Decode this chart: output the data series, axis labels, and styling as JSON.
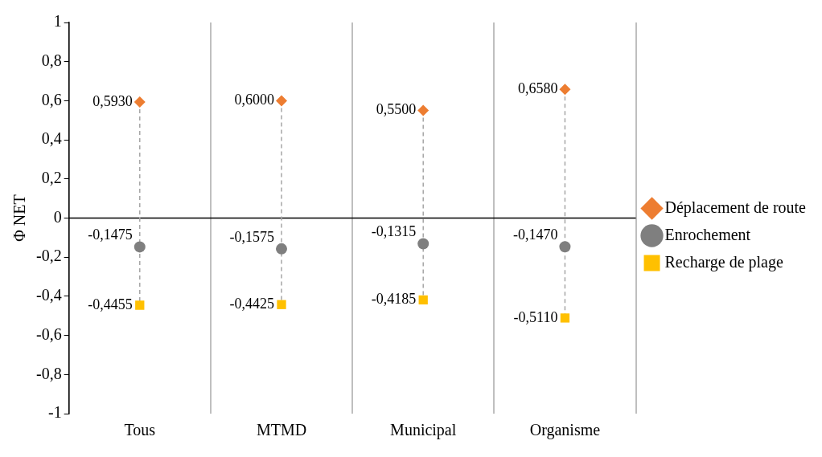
{
  "chart_data": {
    "type": "scatter",
    "ylabel": "Φ NET",
    "categories": [
      "Tous",
      "MTMD",
      "Municipal",
      "Organisme"
    ],
    "series": [
      {
        "name": "Déplacement de route",
        "color": "#ed7d31",
        "marker": "diamond",
        "values": [
          0.593,
          0.6,
          0.55,
          0.658
        ],
        "value_labels": [
          "0,5930",
          "0,6000",
          "0,5500",
          "0,6580"
        ]
      },
      {
        "name": "Enrochement",
        "color": "#7f7f7f",
        "marker": "circle",
        "values": [
          -0.1475,
          -0.1575,
          -0.1315,
          -0.147
        ],
        "value_labels": [
          "-0,1475",
          "-0,1575",
          "-0,1315",
          "-0,1470"
        ]
      },
      {
        "name": "Recharge de plage",
        "color": "#ffc000",
        "marker": "square",
        "values": [
          -0.4455,
          -0.4425,
          -0.4185,
          -0.511
        ],
        "value_labels": [
          "-0,4455",
          "-0,4425",
          "-0,4185",
          "-0,5110"
        ]
      }
    ],
    "ylim": [
      -1,
      1
    ],
    "yticks": [
      {
        "value": -1,
        "label": "-1"
      },
      {
        "value": -0.8,
        "label": "-0,8"
      },
      {
        "value": -0.6,
        "label": "-0,6"
      },
      {
        "value": -0.4,
        "label": "-0,4"
      },
      {
        "value": -0.2,
        "label": "-0,2"
      },
      {
        "value": 0,
        "label": "0"
      },
      {
        "value": 0.2,
        "label": "0,2"
      },
      {
        "value": 0.4,
        "label": "0,4"
      },
      {
        "value": 0.6,
        "label": "0,6"
      },
      {
        "value": 0.8,
        "label": "0,8"
      },
      {
        "value": 1,
        "label": "1"
      }
    ],
    "ref_lines": [
      {
        "axis": "y",
        "value": 0,
        "color": "#000000"
      }
    ],
    "grid": "x",
    "legend": "right"
  }
}
